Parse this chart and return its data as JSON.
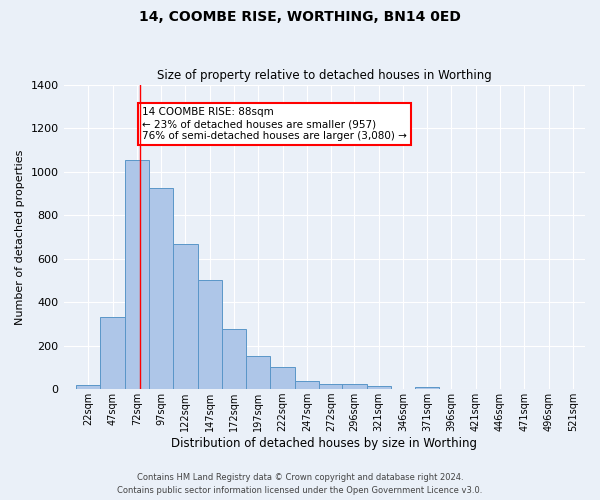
{
  "title": "14, COOMBE RISE, WORTHING, BN14 0ED",
  "subtitle": "Size of property relative to detached houses in Worthing",
  "xlabel": "Distribution of detached houses by size in Worthing",
  "ylabel": "Number of detached properties",
  "footnote1": "Contains HM Land Registry data © Crown copyright and database right 2024.",
  "footnote2": "Contains public sector information licensed under the Open Government Licence v3.0.",
  "annotation_line1": "14 COOMBE RISE: 88sqm",
  "annotation_line2": "← 23% of detached houses are smaller (957)",
  "annotation_line3": "76% of semi-detached houses are larger (3,080) →",
  "bar_color": "#aec6e8",
  "bar_edge_color": "#5a96c8",
  "background_color": "#eaf0f8",
  "grid_color": "#ffffff",
  "red_line_x": 88,
  "categories": [
    "22sqm",
    "47sqm",
    "72sqm",
    "97sqm",
    "122sqm",
    "147sqm",
    "172sqm",
    "197sqm",
    "222sqm",
    "247sqm",
    "272sqm",
    "296sqm",
    "321sqm",
    "346sqm",
    "371sqm",
    "396sqm",
    "421sqm",
    "446sqm",
    "471sqm",
    "496sqm",
    "521sqm"
  ],
  "bin_edges": [
    22,
    47,
    72,
    97,
    122,
    147,
    172,
    197,
    222,
    247,
    272,
    296,
    321,
    346,
    371,
    396,
    421,
    446,
    471,
    496,
    521
  ],
  "bin_width": 25,
  "values": [
    20,
    330,
    1055,
    925,
    668,
    502,
    277,
    152,
    100,
    38,
    25,
    22,
    15,
    0,
    12,
    0,
    0,
    0,
    0,
    0,
    0
  ],
  "ylim": [
    0,
    1400
  ],
  "yticks": [
    0,
    200,
    400,
    600,
    800,
    1000,
    1200,
    1400
  ],
  "xlim_left": 9,
  "xlim_right": 546
}
